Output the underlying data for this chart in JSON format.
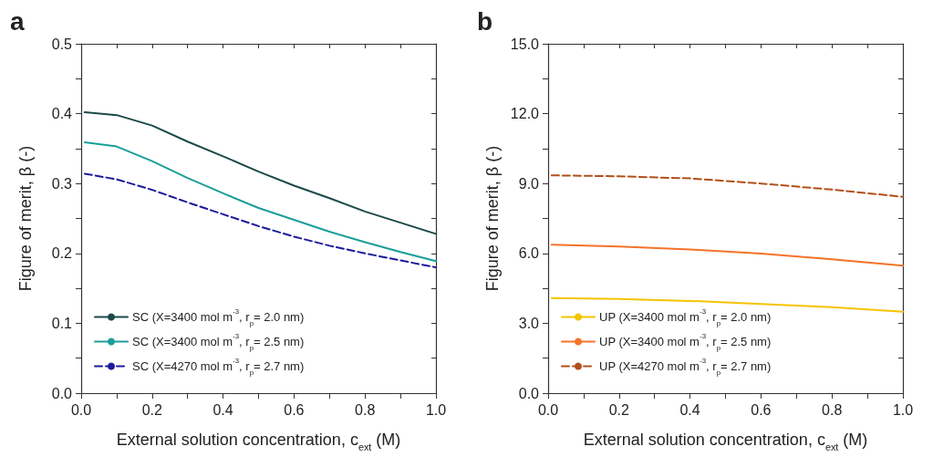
{
  "chart_data": [
    {
      "type": "line",
      "title": "a",
      "xlabel": "External solution concentration, c$_{ext}$ (M)",
      "ylabel": "Figure of merit, β (-)",
      "xlim": [
        0,
        1
      ],
      "ylim": [
        0,
        0.5
      ],
      "xticks": [
        {
          "value": 0,
          "label": "0.0"
        },
        {
          "value": 0.1,
          "label": null
        },
        {
          "value": 0.2,
          "label": "0.2"
        },
        {
          "value": 0.3,
          "label": null
        },
        {
          "value": 0.4,
          "label": "0.4"
        },
        {
          "value": 0.5,
          "label": null
        },
        {
          "value": 0.6,
          "label": "0.6"
        },
        {
          "value": 0.7,
          "label": null
        },
        {
          "value": 0.8,
          "label": "0.8"
        },
        {
          "value": 0.9,
          "label": null
        },
        {
          "value": 1,
          "label": "1.0"
        }
      ],
      "yticks": [
        {
          "value": 0,
          "label": "0.0"
        },
        {
          "value": 0.05,
          "label": null
        },
        {
          "value": 0.1,
          "label": "0.1"
        },
        {
          "value": 0.15,
          "label": null
        },
        {
          "value": 0.2,
          "label": "0.2"
        },
        {
          "value": 0.25,
          "label": null
        },
        {
          "value": 0.3,
          "label": "0.3"
        },
        {
          "value": 0.35,
          "label": null
        },
        {
          "value": 0.4,
          "label": "0.4"
        },
        {
          "value": 0.45,
          "label": null
        },
        {
          "value": 0.5,
          "label": "0.5"
        }
      ],
      "x": [
        0.01,
        0.1,
        0.2,
        0.3,
        0.4,
        0.5,
        0.6,
        0.7,
        0.8,
        0.9,
        1.0
      ],
      "series": [
        {
          "name": "SC (X=3400 mol m$^{-3}$, r$_{p}$= 2.0 nm)",
          "color": "#1a4a48",
          "line_style": "solid",
          "values": [
            0.402,
            0.398,
            0.383,
            0.36,
            0.339,
            0.317,
            0.297,
            0.279,
            0.26,
            0.244,
            0.228
          ]
        },
        {
          "name": "SC (X=3400 mol m$^{-3}$, r$_{p}$= 2.5 nm)",
          "color": "#1a9e9a",
          "line_style": "solid",
          "values": [
            0.359,
            0.353,
            0.332,
            0.308,
            0.286,
            0.265,
            0.248,
            0.231,
            0.216,
            0.202,
            0.189
          ]
        },
        {
          "name": "SC (X=4270 mol m$^{-3}$, r$_{p}$= 2.7 nm)",
          "color": "#1a1a9a",
          "line_style": "dashed",
          "values": [
            0.314,
            0.306,
            0.291,
            0.273,
            0.256,
            0.239,
            0.224,
            0.211,
            0.2,
            0.19,
            0.18
          ]
        }
      ],
      "grid": false,
      "legend": "bottom left",
      "marker": "none"
    },
    {
      "type": "line",
      "title": "b",
      "xlabel": "External solution concentration, c$_{ext}$ (M)",
      "ylabel": "Figure of merit, β (-)",
      "xlim": [
        0,
        1
      ],
      "ylim": [
        0,
        15
      ],
      "xticks": [
        {
          "value": 0,
          "label": "0.0"
        },
        {
          "value": 0.1,
          "label": null
        },
        {
          "value": 0.2,
          "label": "0.2"
        },
        {
          "value": 0.3,
          "label": null
        },
        {
          "value": 0.4,
          "label": "0.4"
        },
        {
          "value": 0.5,
          "label": null
        },
        {
          "value": 0.6,
          "label": "0.6"
        },
        {
          "value": 0.7,
          "label": null
        },
        {
          "value": 0.8,
          "label": "0.8"
        },
        {
          "value": 0.9,
          "label": null
        },
        {
          "value": 1,
          "label": "1.0"
        }
      ],
      "yticks": [
        {
          "value": 0,
          "label": "0.0"
        },
        {
          "value": 1.5,
          "label": null
        },
        {
          "value": 3,
          "label": "3.0"
        },
        {
          "value": 4.5,
          "label": null
        },
        {
          "value": 6,
          "label": "6.0"
        },
        {
          "value": 7.5,
          "label": null
        },
        {
          "value": 9,
          "label": "9.0"
        },
        {
          "value": 10.5,
          "label": null
        },
        {
          "value": 12,
          "label": "12.0"
        },
        {
          "value": 13.5,
          "label": null
        },
        {
          "value": 15,
          "label": "15.0"
        }
      ],
      "x": [
        0.01,
        0.2,
        0.4,
        0.6,
        0.8,
        1.0
      ],
      "series": [
        {
          "name": "UP (X=3400 mol m$^{-3}$, r$_{p}$= 2.0 nm)",
          "color": "#f5c400",
          "line_style": "solid",
          "values": [
            4.08,
            4.04,
            3.96,
            3.83,
            3.69,
            3.5
          ]
        },
        {
          "name": "UP (X=3400 mol m$^{-3}$, r$_{p}$= 2.5 nm)",
          "color": "#f5732a",
          "line_style": "solid",
          "values": [
            6.37,
            6.3,
            6.17,
            5.99,
            5.75,
            5.47
          ]
        },
        {
          "name": "UP (X=4270 mol m$^{-3}$, r$_{p}$= 2.7 nm)",
          "color": "#b0501a",
          "line_style": "dashed",
          "values": [
            9.35,
            9.31,
            9.22,
            9.0,
            8.74,
            8.43
          ]
        }
      ],
      "grid": false,
      "legend": "bottom left",
      "marker": "none"
    }
  ]
}
